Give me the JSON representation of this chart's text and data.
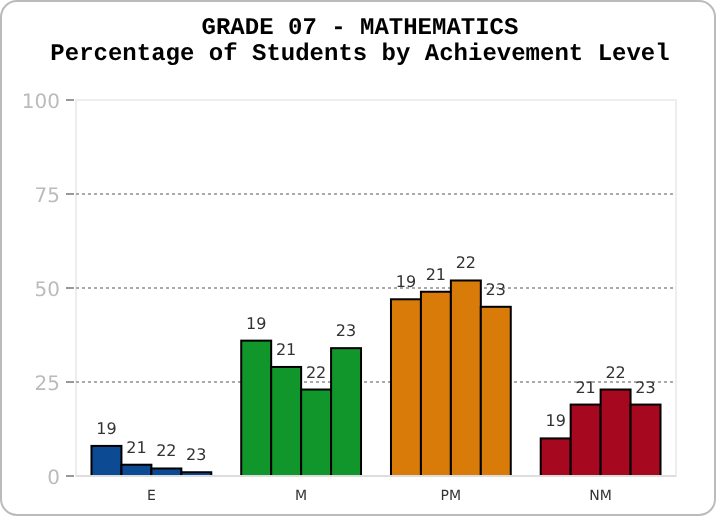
{
  "chart_data": {
    "type": "bar",
    "title": "GRADE 07 - MATHEMATICS",
    "subtitle": "Percentage of Students by Achievement Level",
    "categories": [
      "E",
      "M",
      "PM",
      "NM"
    ],
    "series": [
      {
        "name": "19",
        "colors": [
          "#0d4a94",
          "#10962a",
          "#d97b08",
          "#a5081f"
        ],
        "values": [
          8,
          36,
          47,
          10
        ]
      },
      {
        "name": "21",
        "colors": [
          "#0d4a94",
          "#10962a",
          "#d97b08",
          "#a5081f"
        ],
        "values": [
          3,
          29,
          49,
          19
        ]
      },
      {
        "name": "22",
        "colors": [
          "#0d4a94",
          "#10962a",
          "#d97b08",
          "#a5081f"
        ],
        "values": [
          2,
          23,
          52,
          23
        ]
      },
      {
        "name": "23",
        "colors": [
          "#0d4a94",
          "#10962a",
          "#d97b08",
          "#a5081f"
        ],
        "values": [
          1,
          34,
          45,
          19
        ]
      }
    ],
    "ylim": [
      0,
      100
    ],
    "yticks": [
      0,
      25,
      50,
      75,
      100
    ],
    "grid": "y"
  }
}
